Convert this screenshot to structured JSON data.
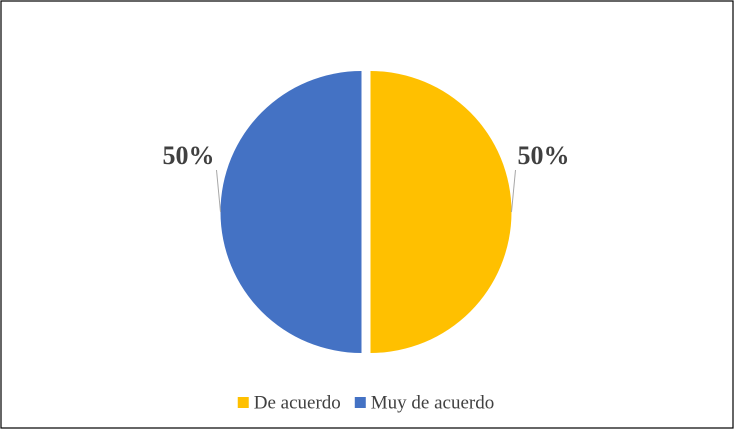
{
  "chart_data": {
    "type": "pie",
    "categories": [
      "De acuerdo",
      "Muy de acuerdo"
    ],
    "values": [
      50,
      50
    ],
    "value_labels": [
      "50%",
      "50%"
    ],
    "colors": [
      "#FFC000",
      "#4472C4"
    ],
    "legend": "bottom"
  }
}
